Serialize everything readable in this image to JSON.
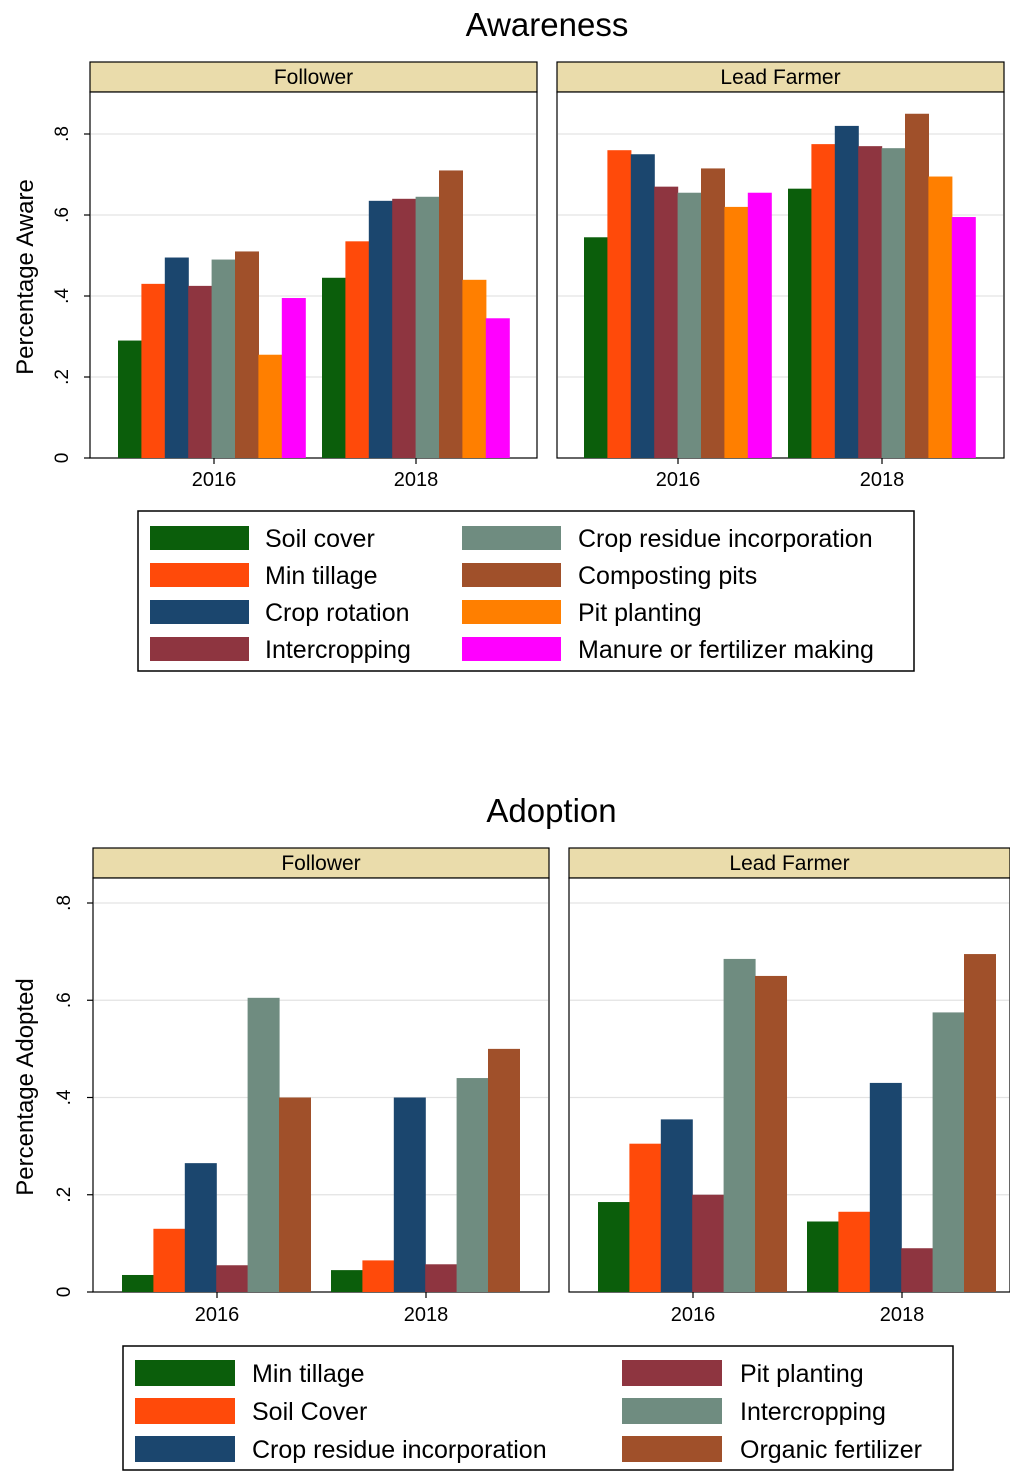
{
  "chart_data": [
    {
      "type": "bar",
      "title": "Awareness",
      "ylabel": "Percentage Aware",
      "ylim": [
        0,
        0.9
      ],
      "yticks": [
        {
          "value": 0,
          "label": "0"
        },
        {
          "value": 0.2,
          "label": ".2"
        },
        {
          "value": 0.4,
          "label": ".4"
        },
        {
          "value": 0.6,
          "label": ".6"
        },
        {
          "value": 0.8,
          "label": ".8"
        }
      ],
      "grid": true,
      "categories": [
        "2016",
        "2018"
      ],
      "colors": {
        "Soil cover": "#0b5e0b",
        "Min tillage": "#ff4a0a",
        "Crop rotation": "#1b466e",
        "Intercropping": "#8e3540",
        "Crop residue incorporation": "#6f8c80",
        "Composting pits": "#a0502a",
        "Pit planting": "#ff7f00",
        "Manure or fertilizer making": "#ff00ff"
      },
      "panels": [
        {
          "label": "Follower",
          "series": [
            {
              "name": "Soil cover",
              "values": [
                0.29,
                0.445
              ]
            },
            {
              "name": "Min tillage",
              "values": [
                0.43,
                0.535
              ]
            },
            {
              "name": "Crop rotation",
              "values": [
                0.495,
                0.635
              ]
            },
            {
              "name": "Intercropping",
              "values": [
                0.425,
                0.64
              ]
            },
            {
              "name": "Crop residue incorporation",
              "values": [
                0.49,
                0.645
              ]
            },
            {
              "name": "Composting pits",
              "values": [
                0.51,
                0.71
              ]
            },
            {
              "name": "Pit planting",
              "values": [
                0.255,
                0.44
              ]
            },
            {
              "name": "Manure or fertilizer making",
              "values": [
                0.395,
                0.345
              ]
            }
          ]
        },
        {
          "label": "Lead Farmer",
          "series": [
            {
              "name": "Soil cover",
              "values": [
                0.545,
                0.665
              ]
            },
            {
              "name": "Min tillage",
              "values": [
                0.76,
                0.775
              ]
            },
            {
              "name": "Crop rotation",
              "values": [
                0.75,
                0.82
              ]
            },
            {
              "name": "Intercropping",
              "values": [
                0.67,
                0.77
              ]
            },
            {
              "name": "Crop residue incorporation",
              "values": [
                0.655,
                0.765
              ]
            },
            {
              "name": "Composting pits",
              "values": [
                0.715,
                0.85
              ]
            },
            {
              "name": "Pit planting",
              "values": [
                0.62,
                0.695
              ]
            },
            {
              "name": "Manure or fertilizer making",
              "values": [
                0.655,
                0.595
              ]
            }
          ]
        }
      ],
      "legend": {
        "position": "bottom",
        "columns": 2,
        "entries": [
          "Soil cover",
          "Min tillage",
          "Crop rotation",
          "Intercropping",
          "Crop residue incorporation",
          "Composting pits",
          "Pit planting",
          "Manure or fertilizer making"
        ]
      }
    },
    {
      "type": "bar",
      "title": "Adoption",
      "ylabel": "Percentage Adopted",
      "ylim": [
        0,
        0.8
      ],
      "yticks": [
        {
          "value": 0,
          "label": "0"
        },
        {
          "value": 0.2,
          "label": ".2"
        },
        {
          "value": 0.4,
          "label": ".4"
        },
        {
          "value": 0.6,
          "label": ".6"
        },
        {
          "value": 0.8,
          "label": ".8"
        }
      ],
      "grid": true,
      "categories": [
        "2016",
        "2018"
      ],
      "colors": {
        "Min tillage": "#0b5e0b",
        "Soil Cover": "#ff4a0a",
        "Crop residue incorporation": "#1b466e",
        "Pit planting": "#8e3540",
        "Intercropping": "#6f8c80",
        "Organic fertilizer": "#a0502a"
      },
      "panels": [
        {
          "label": "Follower",
          "series": [
            {
              "name": "Min tillage",
              "values": [
                0.035,
                0.045
              ]
            },
            {
              "name": "Soil Cover",
              "values": [
                0.13,
                0.065
              ]
            },
            {
              "name": "Crop residue incorporation",
              "values": [
                0.265,
                0.4
              ]
            },
            {
              "name": "Pit planting",
              "values": [
                0.055,
                0.057
              ]
            },
            {
              "name": "Intercropping",
              "values": [
                0.605,
                0.44
              ]
            },
            {
              "name": "Organic fertilizer",
              "values": [
                0.4,
                0.5
              ]
            }
          ]
        },
        {
          "label": "Lead Farmer",
          "series": [
            {
              "name": "Min tillage",
              "values": [
                0.185,
                0.145
              ]
            },
            {
              "name": "Soil Cover",
              "values": [
                0.305,
                0.165
              ]
            },
            {
              "name": "Crop residue incorporation",
              "values": [
                0.355,
                0.43
              ]
            },
            {
              "name": "Pit planting",
              "values": [
                0.2,
                0.09
              ]
            },
            {
              "name": "Intercropping",
              "values": [
                0.685,
                0.575
              ]
            },
            {
              "name": "Organic fertilizer",
              "values": [
                0.65,
                0.695
              ]
            }
          ]
        }
      ],
      "legend": {
        "position": "bottom",
        "columns": 2,
        "entries": [
          "Min tillage",
          "Soil Cover",
          "Crop residue incorporation",
          "Pit planting",
          "Intercropping",
          "Organic fertilizer"
        ]
      }
    }
  ]
}
